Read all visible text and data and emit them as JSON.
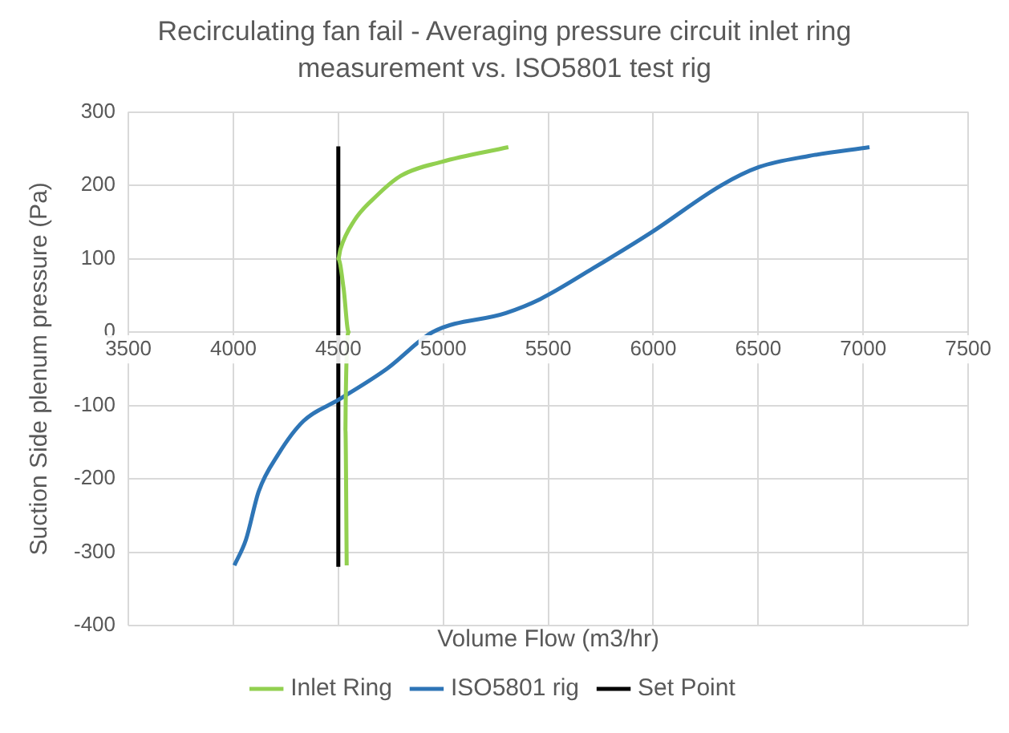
{
  "chart_data": {
    "type": "line",
    "title": "Recirculating fan fail - Averaging pressure circuit inlet ring measurement vs. ISO5801 test rig",
    "xlabel": "Volume Flow (m3/hr)",
    "ylabel": "Suction Side plenum pressure (Pa)",
    "xlim": [
      3500,
      7500
    ],
    "xticks": [
      3500,
      4000,
      4500,
      5000,
      5500,
      6000,
      6500,
      7000,
      7500
    ],
    "ylim": [
      -400,
      300
    ],
    "yticks": [
      -400,
      -300,
      -200,
      -100,
      0,
      100,
      200,
      300
    ],
    "grid": true,
    "legend": "bottom",
    "marker": "none",
    "line_style": "solid",
    "series": [
      {
        "name": "Inlet Ring",
        "color": "#92d050",
        "x": [
          4540,
          4534,
          4535,
          4549,
          4525,
          4500,
          4510,
          4576,
          4680,
          4798,
          4992,
          5310
        ],
        "values": [
          -318,
          -133,
          -100,
          0,
          60,
          100,
          113,
          152,
          185,
          213,
          232,
          252
        ]
      },
      {
        "name": "ISO5801 rig",
        "color": "#2e75b6",
        "x": [
          4005,
          4060,
          4121,
          4213,
          4335,
          4503,
          4732,
          4950,
          5298,
          5462,
          5714,
          5992,
          6324,
          6505,
          6741,
          7030
        ],
        "values": [
          -318,
          -283,
          -217,
          -167,
          -121,
          -92,
          -50,
          0,
          26,
          45,
          87,
          136,
          200,
          225,
          240,
          252
        ]
      },
      {
        "name": "Set Point",
        "color": "#000000",
        "x": [
          4500,
          4500
        ],
        "values": [
          -320,
          253
        ]
      }
    ]
  }
}
